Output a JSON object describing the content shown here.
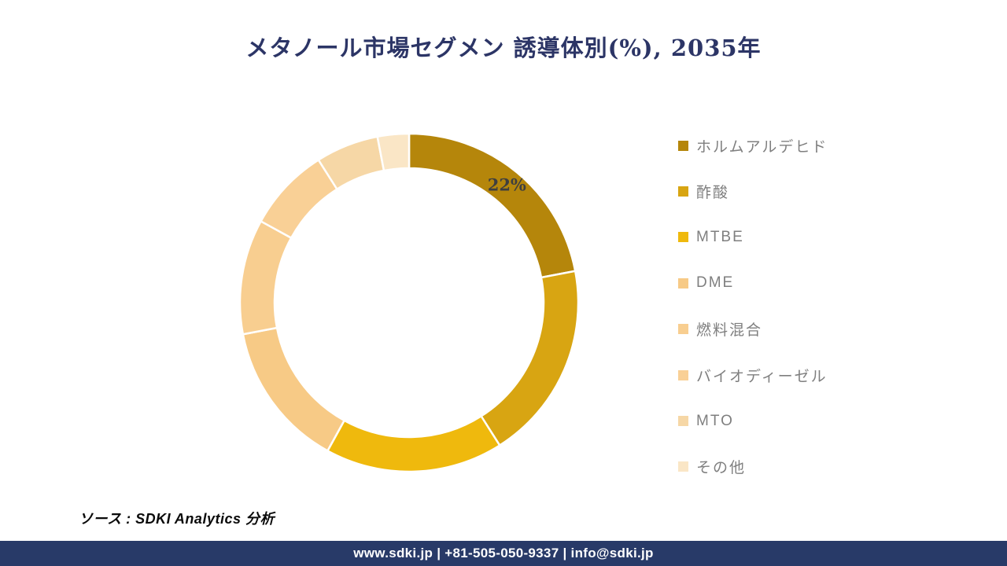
{
  "title": "メタノール市場セグメン 誘導体別(%), 2035年",
  "source_note": "ソース : SDKI Analytics 分析",
  "footer": {
    "text": "www.sdki.jp | +81-505-050-9337 | info@sdki.jp",
    "bg_color": "#283A68",
    "text_color": "#ffffff"
  },
  "styles": {
    "title_color": "#2C3566",
    "legend_text_color": "#7F7F7F",
    "slice_label_color": "#3F3F3F",
    "slice_border_color": "#ffffff"
  },
  "chart_data": {
    "type": "pie",
    "subtype": "donut",
    "title": "メタノール市場セグメン 誘導体別(%), 2035年",
    "unit": "%",
    "year": "2035年",
    "legend_position": "right",
    "grid": false,
    "start_angle_deg": 0,
    "direction": "clockwise",
    "categories": [
      "ホルムアルデヒド",
      "酢酸",
      "MTBE",
      "DME",
      "燃料混合",
      "バイオディーゼル",
      "MTO",
      "その他"
    ],
    "values": [
      22,
      19,
      17,
      14,
      11,
      8,
      6,
      3
    ],
    "colors": [
      "#B5860B",
      "#D8A512",
      "#EFB90D",
      "#F7CA86",
      "#F8CE90",
      "#F9D096",
      "#F6D7A6",
      "#FAE6C6"
    ],
    "visible_labels": [
      {
        "category": "ホルムアルデヒド",
        "text": "22%"
      }
    ]
  }
}
